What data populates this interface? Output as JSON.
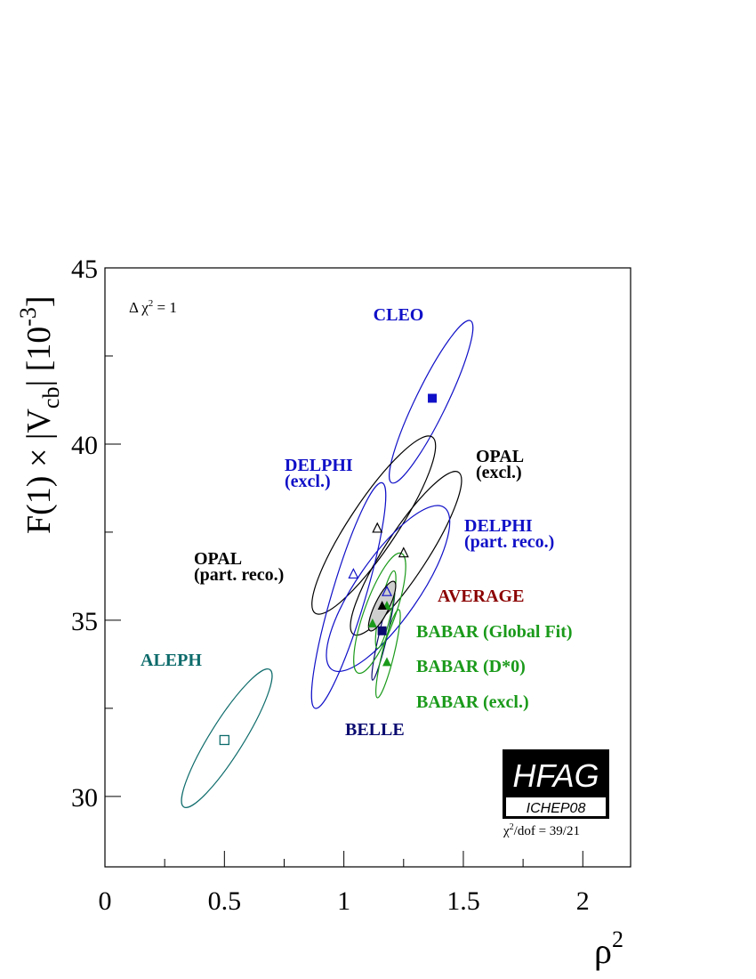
{
  "chart_data": {
    "type": "scatter",
    "xlabel": "ρ",
    "xlabel_sup": "2",
    "ylabel": "F(1) × |V",
    "ylabel_sub": "cb",
    "ylabel_suffix": "| [10",
    "ylabel_sup": "-3",
    "ylabel_close": "]",
    "xlim": [
      0,
      2.2
    ],
    "ylim": [
      28,
      45
    ],
    "xticks": [
      0,
      0.5,
      1,
      1.5,
      2
    ],
    "xtick_labels": [
      "0",
      "0.5",
      "1",
      "1.5",
      "2"
    ],
    "yticks": [
      30,
      35,
      40,
      45
    ],
    "ytick_labels": [
      "30",
      "35",
      "40",
      "45"
    ],
    "xminor_step": 0.25,
    "yminor_step": 2.5,
    "grid": false,
    "annotation": {
      "prefix": "Δ χ",
      "sup": "2",
      "suffix": " = 1"
    },
    "chi2": {
      "prefix": "χ",
      "sup": "2",
      "suffix": "/dof = 39/21"
    },
    "logo": {
      "title": "HFAG",
      "subtitle": "ICHEP08"
    },
    "series": [
      {
        "name": "CLEO",
        "color": "#1010c8",
        "marker": "square-filled",
        "x": 1.37,
        "y": 41.3,
        "ellipse": {
          "x1": 1.2,
          "y1": 38.9,
          "x2": 1.53,
          "y2": 43.5,
          "width": 0.13
        }
      },
      {
        "name": "OPAL (excl.)",
        "color": "#000000",
        "marker": "triangle-open",
        "x": 1.25,
        "y": 36.9,
        "ellipse": {
          "x1": 1.04,
          "y1": 34.6,
          "x2": 1.48,
          "y2": 39.2,
          "width": 0.18
        }
      },
      {
        "name": "OPAL (part. reco.)",
        "color": "#000000",
        "marker": "triangle-open",
        "x": 1.14,
        "y": 37.6,
        "ellipse": {
          "x1": 0.88,
          "y1": 35.2,
          "x2": 1.37,
          "y2": 40.2,
          "width": 0.2
        }
      },
      {
        "name": "DELPHI (excl.)",
        "color": "#1010c8",
        "marker": "triangle-open",
        "x": 1.04,
        "y": 36.3,
        "ellipse": {
          "x1": 0.88,
          "y1": 32.5,
          "x2": 1.16,
          "y2": 38.9,
          "width": 0.14
        }
      },
      {
        "name": "DELPHI (part. reco.)",
        "color": "#1010c8",
        "marker": "triangle-open",
        "x": 1.18,
        "y": 35.8,
        "ellipse": {
          "x1": 0.95,
          "y1": 33.6,
          "x2": 1.42,
          "y2": 38.2,
          "width": 0.26
        }
      },
      {
        "name": "ALEPH",
        "color": "#0e6b6b",
        "marker": "square-open",
        "x": 0.5,
        "y": 31.6,
        "ellipse": {
          "x1": 0.33,
          "y1": 29.7,
          "x2": 0.69,
          "y2": 33.6,
          "width": 0.14
        }
      },
      {
        "name": "BELLE",
        "color": "#0a0a70",
        "marker": "square-filled",
        "x": 1.16,
        "y": 34.7,
        "ellipse": {
          "x1": 1.12,
          "y1": 33.3,
          "x2": 1.21,
          "y2": 35.9,
          "width": 0.035
        }
      },
      {
        "name": "BABAR (excl.)",
        "color": "#1a9a1a",
        "marker": "triangle-filled",
        "x": 1.18,
        "y": 33.8,
        "ellipse": {
          "x1": 1.14,
          "y1": 32.8,
          "x2": 1.23,
          "y2": 35.3,
          "width": 0.05
        }
      },
      {
        "name": "BABAR (D*0)",
        "color": "#1a9a1a",
        "marker": "triangle-filled",
        "x": 1.12,
        "y": 34.9,
        "ellipse": {
          "x1": 1.06,
          "y1": 33.5,
          "x2": 1.24,
          "y2": 36.9,
          "width": 0.13
        }
      },
      {
        "name": "BABAR (Global Fit)",
        "color": "#1a9a1a",
        "marker": "triangle-filled",
        "x": 1.18,
        "y": 35.4,
        "ellipse": {
          "x1": 1.14,
          "y1": 34.2,
          "x2": 1.21,
          "y2": 36.4,
          "width": 0.05
        }
      },
      {
        "name": "AVERAGE",
        "color": "#8b0000",
        "marker": "triangle-filled-black",
        "x": 1.16,
        "y": 35.4,
        "ellipse": {
          "x1": 1.11,
          "y1": 34.7,
          "x2": 1.21,
          "y2": 36.1,
          "width": 0.06
        },
        "fill": "#cfcfcf"
      }
    ],
    "labels": [
      {
        "text": "CLEO",
        "color": "#1010c8",
        "lines": [
          "CLEO"
        ]
      },
      {
        "text": "OPAL (excl.)",
        "color": "#000000",
        "lines": [
          "OPAL",
          "(excl.)"
        ]
      },
      {
        "text": "DELPHI (excl.)",
        "color": "#1010c8",
        "lines": [
          "DELPHI",
          "(excl.)"
        ]
      },
      {
        "text": "DELPHI (part. reco.)",
        "color": "#1010c8",
        "lines": [
          "DELPHI",
          "(part. reco.)"
        ]
      },
      {
        "text": "OPAL (part. reco.)",
        "color": "#000000",
        "lines": [
          "OPAL",
          "(part. reco.)"
        ]
      },
      {
        "text": "AVERAGE",
        "color": "#8b0000",
        "lines": [
          "AVERAGE"
        ]
      },
      {
        "text": "BABAR (Global Fit)",
        "color": "#1a9a1a",
        "lines": [
          "BABAR (Global Fit)"
        ]
      },
      {
        "text": "BABAR (D*0)",
        "color": "#1a9a1a",
        "lines": [
          "BABAR (D*0)"
        ]
      },
      {
        "text": "BABAR (excl.)",
        "color": "#1a9a1a",
        "lines": [
          "BABAR (excl.)"
        ]
      },
      {
        "text": "ALEPH",
        "color": "#0e6b6b",
        "lines": [
          "ALEPH"
        ]
      },
      {
        "text": "BELLE",
        "color": "#0a0a70",
        "lines": [
          "BELLE"
        ]
      }
    ]
  }
}
